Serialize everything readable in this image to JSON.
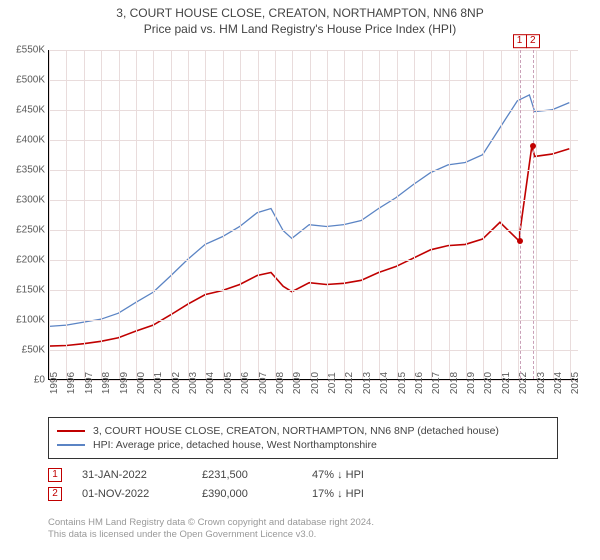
{
  "title": {
    "line1": "3, COURT HOUSE CLOSE, CREATON, NORTHAMPTON, NN6 8NP",
    "line2": "Price paid vs. HM Land Registry's House Price Index (HPI)",
    "fontsize": 12,
    "color": "#444444"
  },
  "chart": {
    "type": "line",
    "background_color": "#ffffff",
    "grid_color": "#e9dcdc",
    "axis_color": "#000000",
    "label_fontsize": 10,
    "label_color": "#5a5a5a",
    "ylim": [
      0,
      550000
    ],
    "ytick_step": 50000,
    "yticks": [
      "£0",
      "£50K",
      "£100K",
      "£150K",
      "£200K",
      "£250K",
      "£300K",
      "£350K",
      "£400K",
      "£450K",
      "£500K",
      "£550K"
    ],
    "xlim": [
      1995,
      2025.5
    ],
    "xticks": [
      1995,
      1996,
      1997,
      1998,
      1999,
      2000,
      2001,
      2002,
      2003,
      2004,
      2005,
      2006,
      2007,
      2008,
      2009,
      2010,
      2011,
      2012,
      2013,
      2014,
      2015,
      2016,
      2017,
      2018,
      2019,
      2020,
      2021,
      2022,
      2023,
      2024,
      2025
    ],
    "vlines": [
      {
        "x": 2022.08,
        "color": "#c9a0b8",
        "dash": true
      },
      {
        "x": 2022.84,
        "color": "#c9a0b8",
        "dash": true
      }
    ],
    "series": [
      {
        "name": "hpi",
        "label": "HPI: Average price, detached house, West Northamptonshire",
        "color": "#5b84c4",
        "width": 1.3,
        "data": [
          [
            1995,
            88000
          ],
          [
            1996,
            90000
          ],
          [
            1997,
            95000
          ],
          [
            1998,
            100000
          ],
          [
            1999,
            110000
          ],
          [
            2000,
            128000
          ],
          [
            2001,
            145000
          ],
          [
            2002,
            172000
          ],
          [
            2003,
            200000
          ],
          [
            2004,
            225000
          ],
          [
            2005,
            238000
          ],
          [
            2006,
            255000
          ],
          [
            2007,
            278000
          ],
          [
            2007.8,
            285000
          ],
          [
            2008.5,
            248000
          ],
          [
            2009,
            235000
          ],
          [
            2010,
            258000
          ],
          [
            2011,
            255000
          ],
          [
            2012,
            258000
          ],
          [
            2013,
            265000
          ],
          [
            2014,
            285000
          ],
          [
            2015,
            303000
          ],
          [
            2016,
            325000
          ],
          [
            2017,
            345000
          ],
          [
            2018,
            358000
          ],
          [
            2019,
            362000
          ],
          [
            2020,
            375000
          ],
          [
            2021,
            420000
          ],
          [
            2022,
            465000
          ],
          [
            2022.7,
            475000
          ],
          [
            2023,
            447000
          ],
          [
            2024,
            450000
          ],
          [
            2025,
            462000
          ]
        ]
      },
      {
        "name": "price_paid",
        "label": "3, COURT HOUSE CLOSE, CREATON, NORTHAMPTON, NN6 8NP (detached house)",
        "color": "#c00000",
        "width": 1.6,
        "data": [
          [
            1995,
            55000
          ],
          [
            1996,
            56000
          ],
          [
            1997,
            59000
          ],
          [
            1998,
            63000
          ],
          [
            1999,
            69000
          ],
          [
            2000,
            80000
          ],
          [
            2001,
            90000
          ],
          [
            2002,
            107000
          ],
          [
            2003,
            125000
          ],
          [
            2004,
            141000
          ],
          [
            2005,
            148000
          ],
          [
            2006,
            158000
          ],
          [
            2007,
            173000
          ],
          [
            2007.8,
            178000
          ],
          [
            2008.5,
            155000
          ],
          [
            2009,
            146000
          ],
          [
            2010,
            161000
          ],
          [
            2011,
            158000
          ],
          [
            2012,
            160000
          ],
          [
            2013,
            165000
          ],
          [
            2014,
            178000
          ],
          [
            2015,
            188000
          ],
          [
            2016,
            202000
          ],
          [
            2017,
            216000
          ],
          [
            2018,
            223000
          ],
          [
            2019,
            225000
          ],
          [
            2020,
            234000
          ],
          [
            2021,
            262000
          ],
          [
            2022.08,
            231500
          ],
          [
            2022.84,
            390000
          ],
          [
            2023,
            372000
          ],
          [
            2024,
            376000
          ],
          [
            2025,
            385000
          ]
        ]
      }
    ],
    "markers": [
      {
        "num": "1",
        "x": 2022.08,
        "y": 231500,
        "color": "#c00000"
      },
      {
        "num": "2",
        "x": 2022.84,
        "y": 390000,
        "color": "#c00000"
      }
    ]
  },
  "legend": {
    "border_color": "#333333",
    "rows": [
      {
        "color": "#c00000",
        "label_path": "chart.series.1.label"
      },
      {
        "color": "#5b84c4",
        "label_path": "chart.series.0.label"
      }
    ]
  },
  "annotations": [
    {
      "num": "1",
      "date": "31-JAN-2022",
      "price": "£231,500",
      "pct": "47%",
      "arrow": "↓",
      "suffix": "HPI"
    },
    {
      "num": "2",
      "date": "01-NOV-2022",
      "price": "£390,000",
      "pct": "17%",
      "arrow": "↓",
      "suffix": "HPI"
    }
  ],
  "footer": {
    "line1": "Contains HM Land Registry data © Crown copyright and database right 2024.",
    "line2": "This data is licensed under the Open Government Licence v3.0.",
    "fontsize": 9.5,
    "color": "#999999"
  }
}
